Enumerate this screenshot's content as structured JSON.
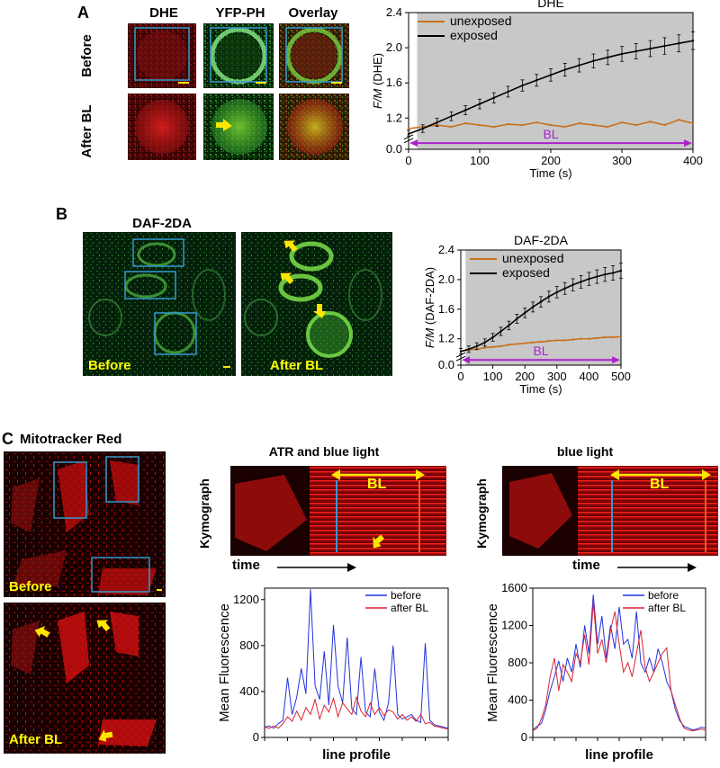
{
  "panel_a": {
    "letter": "A",
    "columns": [
      "DHE",
      "YFP-PH",
      "Overlay"
    ],
    "rows": [
      "Before",
      "After BL"
    ]
  },
  "panel_b": {
    "letter": "B",
    "image_title": "DAF-2DA",
    "labels": [
      "Before",
      "After BL"
    ]
  },
  "panel_c": {
    "letter": "C",
    "image_title": "Mitotracker Red",
    "labels": [
      "Before",
      "After BL"
    ],
    "kymo_titles": [
      "ATR and blue light",
      "blue light"
    ],
    "kymograph_label": "Kymograph",
    "bl_label": "BL",
    "time_label": "time"
  },
  "colors": {
    "unexposed": "#c8701e",
    "exposed": "#000000",
    "bl_arrow": "#aa22cc",
    "before": "#2233dd",
    "after": "#dd2233",
    "arrow_yellow": "#ffe600",
    "box_blue": "#3399cc"
  },
  "chart_data": [
    {
      "type": "line",
      "title": "DHE",
      "xlabel": "Time (s)",
      "ylabel_italic": "F/M",
      "ylabel_rest": " (DHE)",
      "xlim": [
        0,
        400
      ],
      "ylim_display": [
        0.0,
        2.4
      ],
      "xticks": [
        "0",
        "100",
        "200",
        "300",
        "400"
      ],
      "yticks": [
        "0.0",
        "1.2",
        "1.6",
        "2.0",
        "2.4"
      ],
      "axis_break": true,
      "background": "gray",
      "annotation": "BL",
      "legend": "top-left",
      "x": [
        0,
        20,
        40,
        60,
        80,
        100,
        120,
        140,
        160,
        180,
        200,
        220,
        240,
        260,
        280,
        300,
        320,
        340,
        360,
        380,
        400
      ],
      "series": [
        {
          "name": "unexposed",
          "values": [
            1.08,
            1.1,
            1.12,
            1.1,
            1.14,
            1.12,
            1.1,
            1.13,
            1.12,
            1.15,
            1.12,
            1.1,
            1.14,
            1.12,
            1.1,
            1.15,
            1.12,
            1.16,
            1.12,
            1.18,
            1.14
          ]
        },
        {
          "name": "exposed",
          "values": [
            1.02,
            1.08,
            1.15,
            1.22,
            1.29,
            1.36,
            1.43,
            1.5,
            1.57,
            1.63,
            1.69,
            1.75,
            1.8,
            1.85,
            1.89,
            1.93,
            1.96,
            1.99,
            2.02,
            2.05,
            2.08
          ]
        }
      ]
    },
    {
      "type": "line",
      "title": "DAF-2DA",
      "xlabel": "Time (s)",
      "ylabel_italic": "F/M",
      "ylabel_rest": " (DAF-2DA)",
      "xlim": [
        0,
        500
      ],
      "ylim_display": [
        0.0,
        2.4
      ],
      "xticks": [
        "0",
        "100",
        "200",
        "300",
        "400",
        "500"
      ],
      "yticks": [
        "0.0",
        "1.2",
        "1.6",
        "2.0",
        "2.4"
      ],
      "axis_break": true,
      "background": "gray",
      "annotation": "BL",
      "legend": "top-left",
      "x": [
        0,
        25,
        50,
        75,
        100,
        125,
        150,
        175,
        200,
        225,
        250,
        275,
        300,
        325,
        350,
        375,
        400,
        425,
        450,
        475,
        500
      ],
      "series": [
        {
          "name": "unexposed",
          "values": [
            1.03,
            1.05,
            1.06,
            1.08,
            1.09,
            1.1,
            1.12,
            1.13,
            1.14,
            1.15,
            1.16,
            1.17,
            1.18,
            1.18,
            1.19,
            1.2,
            1.2,
            1.21,
            1.22,
            1.22,
            1.23
          ]
        },
        {
          "name": "exposed",
          "values": [
            1.03,
            1.06,
            1.1,
            1.15,
            1.22,
            1.3,
            1.38,
            1.47,
            1.55,
            1.63,
            1.7,
            1.77,
            1.83,
            1.88,
            1.93,
            1.97,
            2.01,
            2.04,
            2.07,
            2.09,
            2.12
          ]
        }
      ]
    },
    {
      "type": "line",
      "xlabel": "line profile",
      "ylabel": "Mean Fluorescence",
      "ylim": [
        0,
        1300
      ],
      "yticks": [
        "0",
        "400",
        "800",
        "1200"
      ],
      "legend": "top-right",
      "x": [
        0,
        1,
        2,
        3,
        4,
        5,
        6,
        7,
        8,
        9,
        10,
        11,
        12,
        13,
        14,
        15,
        16,
        17,
        18,
        19,
        20,
        21,
        22,
        23,
        24,
        25,
        26,
        27,
        28,
        29,
        30,
        31,
        32,
        33,
        34,
        35,
        36,
        37,
        38,
        39,
        40
      ],
      "series": [
        {
          "name": "before",
          "values": [
            90,
            100,
            80,
            120,
            150,
            520,
            200,
            350,
            600,
            380,
            1290,
            450,
            330,
            750,
            280,
            980,
            450,
            300,
            870,
            250,
            200,
            700,
            220,
            180,
            600,
            220,
            150,
            300,
            800,
            200,
            160,
            180,
            200,
            150,
            130,
            820,
            150,
            110,
            100,
            90,
            80
          ]
        },
        {
          "name": "after BL",
          "values": [
            90,
            80,
            100,
            80,
            120,
            180,
            140,
            230,
            150,
            260,
            200,
            330,
            160,
            280,
            220,
            340,
            180,
            300,
            250,
            200,
            350,
            230,
            180,
            300,
            200,
            260,
            190,
            240,
            220,
            160,
            200,
            150,
            180,
            140,
            200,
            120,
            130,
            100,
            90,
            80,
            70
          ]
        }
      ]
    },
    {
      "type": "line",
      "xlabel": "line profile",
      "ylabel": "Mean Fluorescence",
      "ylim": [
        0,
        1600
      ],
      "yticks": [
        "0",
        "400",
        "800",
        "1200",
        "1600"
      ],
      "legend": "top-right",
      "x": [
        0,
        1,
        2,
        3,
        4,
        5,
        6,
        7,
        8,
        9,
        10,
        11,
        12,
        13,
        14,
        15,
        16,
        17,
        18,
        19,
        20,
        21,
        22,
        23,
        24,
        25,
        26,
        27,
        28,
        29,
        30,
        31,
        32,
        33,
        34,
        35,
        36,
        37,
        38,
        39,
        40
      ],
      "series": [
        {
          "name": "before",
          "values": [
            80,
            120,
            150,
            300,
            500,
            650,
            820,
            600,
            850,
            700,
            1000,
            750,
            1200,
            900,
            1530,
            1000,
            1300,
            850,
            1200,
            950,
            1400,
            1000,
            1050,
            850,
            1350,
            800,
            700,
            850,
            700,
            950,
            800,
            600,
            500,
            300,
            180,
            120,
            100,
            80,
            90,
            110,
            100
          ]
        },
        {
          "name": "after BL",
          "values": [
            70,
            100,
            200,
            350,
            650,
            850,
            500,
            780,
            700,
            600,
            900,
            800,
            1100,
            780,
            1450,
            900,
            1050,
            800,
            1150,
            1350,
            1000,
            700,
            800,
            650,
            900,
            1150,
            750,
            600,
            700,
            800,
            900,
            960,
            500,
            350,
            200,
            100,
            80,
            70,
            80,
            90,
            80
          ]
        }
      ]
    }
  ]
}
